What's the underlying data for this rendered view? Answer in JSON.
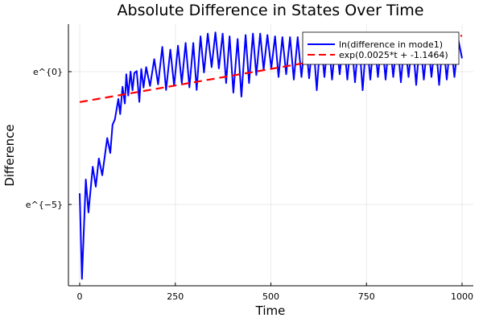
{
  "chart_data": {
    "type": "line",
    "title": "Absolute Difference in States Over Time",
    "xlabel": "Time",
    "ylabel": "Difference",
    "xlim": [
      -30,
      1030
    ],
    "ylim": [
      -8.06,
      1.79
    ],
    "x_ticks": [
      {
        "value": 0,
        "label": "0"
      },
      {
        "value": 250,
        "label": "250"
      },
      {
        "value": 500,
        "label": "500"
      },
      {
        "value": 750,
        "label": "750"
      },
      {
        "value": 1000,
        "label": "1000"
      }
    ],
    "y_ticks": [
      {
        "value": 0,
        "label": "e^{0}"
      },
      {
        "value": -5,
        "label": "e^{−5}"
      }
    ],
    "grid": true,
    "legend_position": "top-right",
    "series": [
      {
        "name": "ln(difference in mode1)",
        "color": "#0000ff",
        "style": "solid",
        "x": [
          0,
          6,
          16,
          23,
          34,
          42,
          50,
          59,
          72,
          80,
          86,
          92,
          101,
          106,
          112,
          118,
          122,
          127,
          133,
          138,
          143,
          149,
          156,
          161,
          167,
          174,
          184,
          195,
          205,
          216,
          226,
          237,
          247,
          257,
          267,
          277,
          287,
          297,
          306,
          316,
          325,
          335,
          345,
          355,
          364,
          374,
          383,
          392,
          402,
          413,
          423,
          434,
          443,
          453,
          462,
          472,
          481,
          491,
          501,
          511,
          520,
          530,
          540,
          550,
          560,
          570,
          580,
          590,
          600,
          610,
          620,
          630,
          640,
          650,
          660,
          670,
          680,
          690,
          700,
          710,
          720,
          730,
          740,
          750,
          760,
          770,
          780,
          790,
          800,
          810,
          820,
          830,
          840,
          850,
          860,
          870,
          880,
          890,
          900,
          910,
          920,
          930,
          940,
          950,
          960,
          970,
          980,
          990,
          1000
        ],
        "y": [
          -4.58,
          -7.8,
          -4.06,
          -5.3,
          -3.58,
          -4.33,
          -3.27,
          -3.9,
          -2.5,
          -3.06,
          -2.0,
          -1.8,
          -1.03,
          -1.6,
          -0.57,
          -1.2,
          -0.1,
          -0.9,
          0.0,
          -0.7,
          -0.05,
          0.02,
          -1.14,
          0.1,
          -0.6,
          0.17,
          -0.54,
          0.47,
          -0.48,
          0.93,
          -0.69,
          0.83,
          -0.54,
          0.98,
          -0.43,
          1.08,
          -0.59,
          1.08,
          -0.69,
          1.33,
          -0.03,
          1.43,
          0.17,
          1.48,
          0.12,
          1.43,
          -0.43,
          1.33,
          -0.79,
          1.23,
          -0.94,
          1.38,
          -0.43,
          1.43,
          -0.13,
          1.43,
          0.08,
          1.38,
          0.12,
          1.33,
          -0.2,
          1.3,
          -0.1,
          1.3,
          -0.3,
          1.3,
          -0.2,
          1.3,
          -0.25,
          1.3,
          -0.7,
          1.3,
          -0.2,
          1.3,
          -0.3,
          1.3,
          -0.1,
          1.3,
          -0.3,
          1.3,
          -0.4,
          1.3,
          -0.7,
          1.3,
          -0.3,
          1.3,
          -0.2,
          1.3,
          -0.3,
          1.28,
          -0.2,
          1.28,
          -0.4,
          1.25,
          -0.2,
          1.25,
          -0.5,
          1.25,
          -0.3,
          1.22,
          -0.2,
          1.22,
          -0.5,
          1.2,
          -0.3,
          1.2,
          -0.2,
          1.2,
          0.5
        ]
      },
      {
        "name": "exp(0.0025*t + -1.1464)",
        "color": "#ff0000",
        "style": "dashed",
        "slope": 0.0025,
        "intercept": -1.1464,
        "x": [
          0,
          1000
        ]
      }
    ]
  }
}
